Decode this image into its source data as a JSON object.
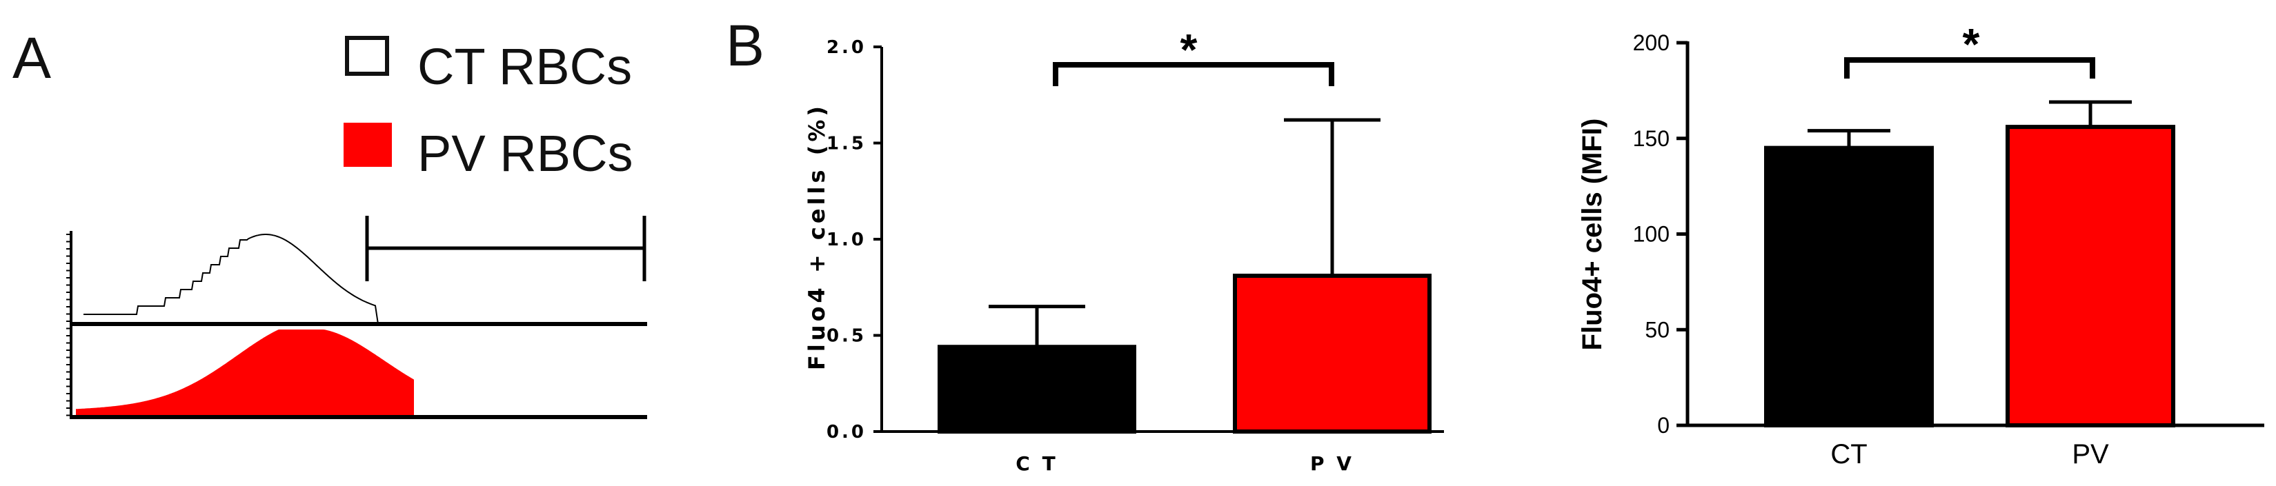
{
  "panel_labels": {
    "a": "A",
    "b": "B"
  },
  "legend": {
    "ct_label": "CT RBCs",
    "pv_label": "PV RBCs",
    "ct_color": "#ffffff",
    "pv_color": "#ff0000"
  },
  "colors": {
    "ct": "#000000",
    "pv": "#ff0000",
    "axis": "#000000"
  },
  "chart_data": [
    {
      "type": "bar",
      "categories": [
        "C T",
        "P V"
      ],
      "values": [
        0.44,
        0.81
      ],
      "error_upper": [
        0.65,
        1.62
      ],
      "colors": [
        "#000000",
        "#ff0000"
      ],
      "ylabel": "Fluo4 + cells (%)",
      "xlabel": "",
      "ylim": [
        0,
        2.0
      ],
      "yticks": [
        "0.0",
        "0.5",
        "1.0",
        "1.5",
        "2.0"
      ],
      "ytick_values": [
        0,
        0.5,
        1.0,
        1.5,
        2.0
      ],
      "significance": "*",
      "grid": false
    },
    {
      "type": "bar",
      "categories": [
        "CT",
        "PV"
      ],
      "values": [
        145,
        156
      ],
      "error_upper": [
        154,
        169
      ],
      "colors": [
        "#000000",
        "#ff0000"
      ],
      "ylabel": "Fluo4+ cells (MFI)",
      "xlabel": "",
      "ylim": [
        0,
        200
      ],
      "yticks": [
        "0",
        "50",
        "100",
        "150",
        "200"
      ],
      "ytick_values": [
        0,
        50,
        100,
        150,
        200
      ],
      "significance": "*",
      "grid": false
    }
  ]
}
